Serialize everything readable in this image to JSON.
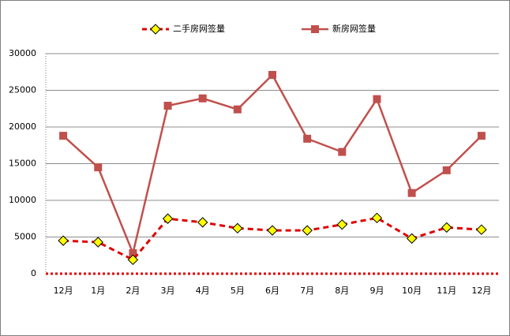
{
  "chart_data": {
    "type": "line",
    "categories": [
      "12月",
      "1月",
      "2月",
      "3月",
      "4月",
      "5月",
      "6月",
      "7月",
      "8月",
      "9月",
      "10月",
      "11月",
      "12月"
    ],
    "series": [
      {
        "name": "二手房网签量",
        "color": "#e00000",
        "marker": "diamond",
        "marker_color": "#ffff00",
        "dashed": true,
        "values": [
          4500,
          4300,
          1900,
          7500,
          7000,
          6200,
          5900,
          5900,
          6700,
          7600,
          4800,
          6300,
          6000
        ]
      },
      {
        "name": "新房网签量",
        "color": "#c0504d",
        "marker": "square",
        "marker_color": "#c0504d",
        "dashed": false,
        "values": [
          18800,
          14500,
          2800,
          22900,
          23900,
          22400,
          27100,
          18400,
          16600,
          23800,
          11000,
          14100,
          18800
        ]
      }
    ],
    "ylim": [
      0,
      30000
    ],
    "yticks": [
      0,
      5000,
      10000,
      15000,
      20000,
      25000,
      30000
    ],
    "grid": true
  }
}
